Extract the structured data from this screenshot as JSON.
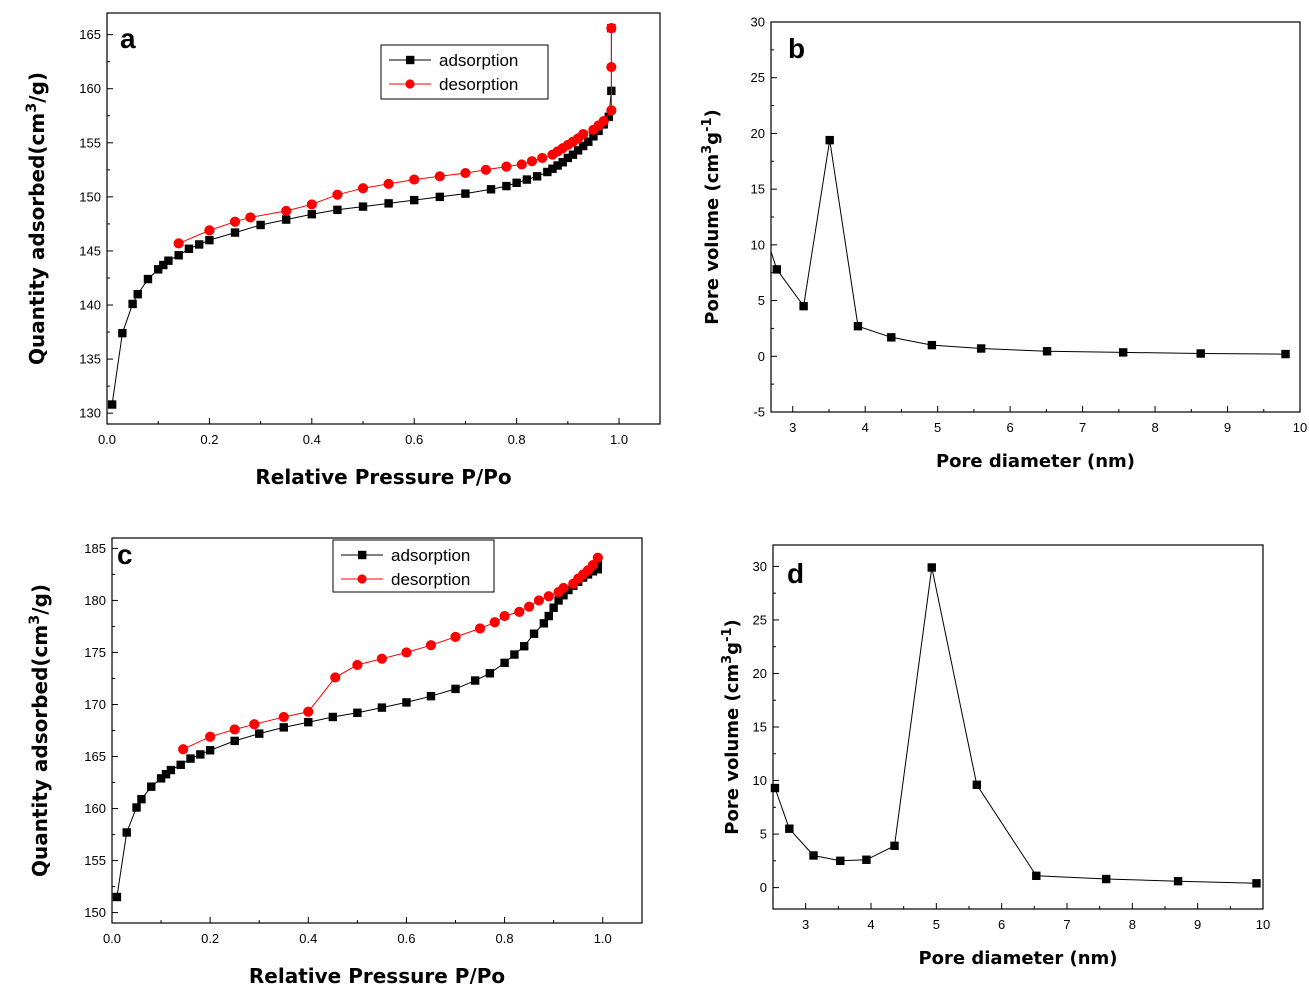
{
  "chart_data": [
    {
      "type": "line",
      "panel_label": "a",
      "xlabel": "Relative Pressure P/Po",
      "ylabel": "Quantity adsorbed(cm3/g)",
      "xlim": [
        0.0,
        1.08
      ],
      "ylim": [
        129,
        167
      ],
      "xticks": [
        0.0,
        0.2,
        0.4,
        0.6,
        0.8,
        1.0
      ],
      "xtick_labels": [
        "0.0",
        "0.2",
        "0.4",
        "0.6",
        "0.8",
        "1.0"
      ],
      "yticks": [
        130,
        135,
        140,
        145,
        150,
        155,
        160,
        165
      ],
      "ytick_labels": [
        "130",
        "135",
        "140",
        "145",
        "150",
        "155",
        "160",
        "165"
      ],
      "legend": "top-right",
      "series": [
        {
          "name": "adsorption",
          "color": "#000000",
          "marker": "square",
          "x": [
            0.01,
            0.03,
            0.05,
            0.06,
            0.08,
            0.1,
            0.11,
            0.12,
            0.14,
            0.16,
            0.18,
            0.2,
            0.25,
            0.3,
            0.35,
            0.4,
            0.45,
            0.5,
            0.55,
            0.6,
            0.65,
            0.7,
            0.75,
            0.78,
            0.8,
            0.82,
            0.84,
            0.86,
            0.87,
            0.88,
            0.89,
            0.9,
            0.91,
            0.92,
            0.93,
            0.94,
            0.95,
            0.96,
            0.97,
            0.98,
            0.985,
            0.985
          ],
          "y": [
            130.8,
            137.4,
            140.1,
            141.0,
            142.4,
            143.3,
            143.7,
            144.1,
            144.6,
            145.2,
            145.6,
            146.0,
            146.7,
            147.4,
            147.9,
            148.4,
            148.8,
            149.1,
            149.4,
            149.7,
            150.0,
            150.3,
            150.7,
            151.0,
            151.3,
            151.6,
            151.9,
            152.3,
            152.6,
            152.9,
            153.2,
            153.6,
            153.9,
            154.3,
            154.7,
            155.1,
            155.6,
            156.1,
            156.7,
            157.4,
            159.8,
            165.6
          ]
        },
        {
          "name": "desorption",
          "color": "#ff0000",
          "marker": "circle",
          "x": [
            0.985,
            0.985,
            0.985,
            0.97,
            0.96,
            0.95,
            0.93,
            0.92,
            0.91,
            0.9,
            0.89,
            0.88,
            0.87,
            0.85,
            0.83,
            0.81,
            0.78,
            0.74,
            0.7,
            0.65,
            0.6,
            0.55,
            0.5,
            0.45,
            0.4,
            0.35,
            0.28,
            0.25,
            0.2,
            0.14
          ],
          "y": [
            165.6,
            162.0,
            158.0,
            157.0,
            156.6,
            156.2,
            155.8,
            155.4,
            155.1,
            154.8,
            154.5,
            154.2,
            153.9,
            153.6,
            153.3,
            153.0,
            152.8,
            152.5,
            152.2,
            151.9,
            151.6,
            151.2,
            150.8,
            150.2,
            149.3,
            148.7,
            148.1,
            147.7,
            146.9,
            145.7
          ]
        }
      ]
    },
    {
      "type": "line",
      "panel_label": "b",
      "xlabel": "Pore diameter (nm)",
      "ylabel": "Pore volume (cm3g-1)",
      "xlim": [
        2.7,
        10.0
      ],
      "ylim": [
        -5,
        30
      ],
      "xticks": [
        3,
        4,
        5,
        6,
        7,
        8,
        9,
        10
      ],
      "xtick_labels": [
        "3",
        "4",
        "5",
        "6",
        "7",
        "8",
        "9",
        "10"
      ],
      "yticks": [
        -5,
        0,
        5,
        10,
        15,
        20,
        25,
        30
      ],
      "ytick_labels": [
        "-5",
        "0",
        "5",
        "10",
        "15",
        "20",
        "25",
        "30"
      ],
      "series": [
        {
          "color": "#000000",
          "marker": "square",
          "x": [
            2.7,
            2.78,
            3.15,
            3.51,
            3.9,
            4.36,
            4.92,
            5.6,
            6.51,
            7.56,
            8.63,
            9.8
          ],
          "y": [
            9.4,
            7.8,
            4.5,
            19.4,
            2.7,
            1.7,
            1.0,
            0.7,
            0.45,
            0.35,
            0.25,
            0.2
          ],
          "markers_from_index": 1
        }
      ]
    },
    {
      "type": "line",
      "panel_label": "c",
      "xlabel": "Relative Pressure P/Po",
      "ylabel": "Quantity adsorbed(cm3/g)",
      "xlim": [
        0.0,
        1.08
      ],
      "ylim": [
        149,
        186
      ],
      "xticks": [
        0.0,
        0.2,
        0.4,
        0.6,
        0.8,
        1.0
      ],
      "xtick_labels": [
        "0.0",
        "0.2",
        "0.4",
        "0.6",
        "0.8",
        "1.0"
      ],
      "yticks": [
        150,
        155,
        160,
        165,
        170,
        175,
        180,
        185
      ],
      "ytick_labels": [
        "150",
        "155",
        "160",
        "165",
        "170",
        "175",
        "180",
        "185"
      ],
      "legend": "top-right",
      "series": [
        {
          "name": "adsorption",
          "color": "#000000",
          "marker": "square",
          "x": [
            0.01,
            0.03,
            0.05,
            0.06,
            0.08,
            0.1,
            0.11,
            0.12,
            0.14,
            0.16,
            0.18,
            0.2,
            0.25,
            0.3,
            0.35,
            0.4,
            0.45,
            0.5,
            0.55,
            0.6,
            0.65,
            0.7,
            0.74,
            0.77,
            0.8,
            0.82,
            0.84,
            0.86,
            0.88,
            0.89,
            0.9,
            0.91,
            0.92,
            0.93,
            0.94,
            0.95,
            0.96,
            0.97,
            0.98,
            0.99,
            0.99
          ],
          "y": [
            151.5,
            157.7,
            160.1,
            160.9,
            162.1,
            162.9,
            163.3,
            163.7,
            164.2,
            164.8,
            165.2,
            165.6,
            166.5,
            167.2,
            167.8,
            168.3,
            168.8,
            169.2,
            169.7,
            170.2,
            170.8,
            171.5,
            172.3,
            173.0,
            174.0,
            174.8,
            175.6,
            176.8,
            177.8,
            178.5,
            179.3,
            180.0,
            180.5,
            181.0,
            181.4,
            181.8,
            182.2,
            182.5,
            182.8,
            183.0,
            183.7
          ]
        },
        {
          "name": "desorption",
          "color": "#ff0000",
          "marker": "circle",
          "x": [
            0.99,
            0.98,
            0.97,
            0.96,
            0.95,
            0.94,
            0.92,
            0.91,
            0.89,
            0.87,
            0.85,
            0.83,
            0.8,
            0.78,
            0.75,
            0.7,
            0.65,
            0.6,
            0.55,
            0.5,
            0.455,
            0.4,
            0.35,
            0.29,
            0.25,
            0.2,
            0.145
          ],
          "y": [
            184.1,
            183.4,
            182.9,
            182.5,
            182.1,
            181.6,
            181.2,
            180.8,
            180.4,
            180.0,
            179.4,
            178.9,
            178.5,
            177.9,
            177.3,
            176.5,
            175.7,
            175.0,
            174.4,
            173.8,
            172.6,
            169.3,
            168.8,
            168.1,
            167.6,
            166.9,
            165.7
          ]
        }
      ]
    },
    {
      "type": "line",
      "panel_label": "d",
      "xlabel": "Pore diameter (nm)",
      "ylabel": "Pore volume (cm3g-1)",
      "xlim": [
        2.5,
        10.0
      ],
      "ylim": [
        -2,
        32
      ],
      "xticks": [
        3,
        4,
        5,
        6,
        7,
        8,
        9,
        10
      ],
      "xtick_labels": [
        "3",
        "4",
        "5",
        "6",
        "7",
        "8",
        "9",
        "10"
      ],
      "yticks": [
        0,
        5,
        10,
        15,
        20,
        25,
        30
      ],
      "ytick_labels": [
        "0",
        "5",
        "10",
        "15",
        "20",
        "25",
        "30"
      ],
      "series": [
        {
          "color": "#000000",
          "marker": "square",
          "x": [
            2.53,
            2.75,
            3.12,
            3.53,
            3.93,
            4.36,
            4.93,
            5.62,
            6.53,
            7.6,
            8.7,
            9.9
          ],
          "y": [
            9.3,
            5.5,
            3.0,
            2.5,
            2.6,
            3.9,
            29.9,
            9.6,
            1.1,
            0.8,
            0.6,
            0.4
          ]
        }
      ]
    }
  ]
}
